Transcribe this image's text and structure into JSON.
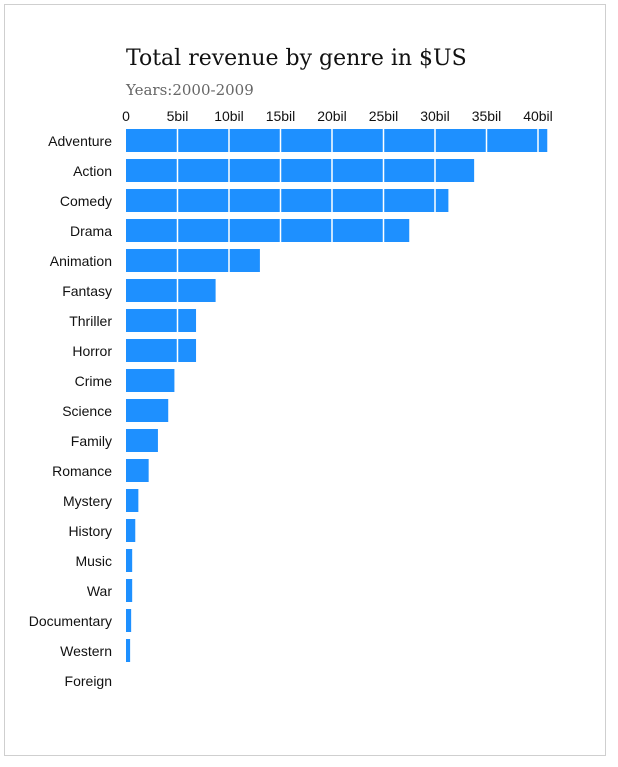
{
  "chart_data": {
    "type": "bar",
    "orientation": "horizontal",
    "title": "Total revenue by genre in $US",
    "subtitle": "Years:2000-2009",
    "xlabel": "",
    "ylabel": "",
    "xlim": [
      0,
      40.9
    ],
    "xticks": [
      0,
      5,
      10,
      15,
      20,
      25,
      30,
      35,
      40
    ],
    "xtick_labels": [
      "0",
      "5bil",
      "10bil",
      "15bil",
      "20bil",
      "25bil",
      "30bil",
      "35bil",
      "40bil"
    ],
    "grid": true,
    "bar_color": "#1e90ff",
    "categories": [
      "Adventure",
      "Action",
      "Comedy",
      "Drama",
      "Animation",
      "Fantasy",
      "Thriller",
      "Horror",
      "Crime",
      "Science",
      "Family",
      "Romance",
      "Mystery",
      "History",
      "Music",
      "War",
      "Documentary",
      "Western",
      "Foreign"
    ],
    "values": [
      40.9,
      33.8,
      31.3,
      27.5,
      13.0,
      8.7,
      6.8,
      6.8,
      4.7,
      4.1,
      3.1,
      2.2,
      1.2,
      0.9,
      0.6,
      0.6,
      0.5,
      0.4,
      0.0
    ]
  }
}
